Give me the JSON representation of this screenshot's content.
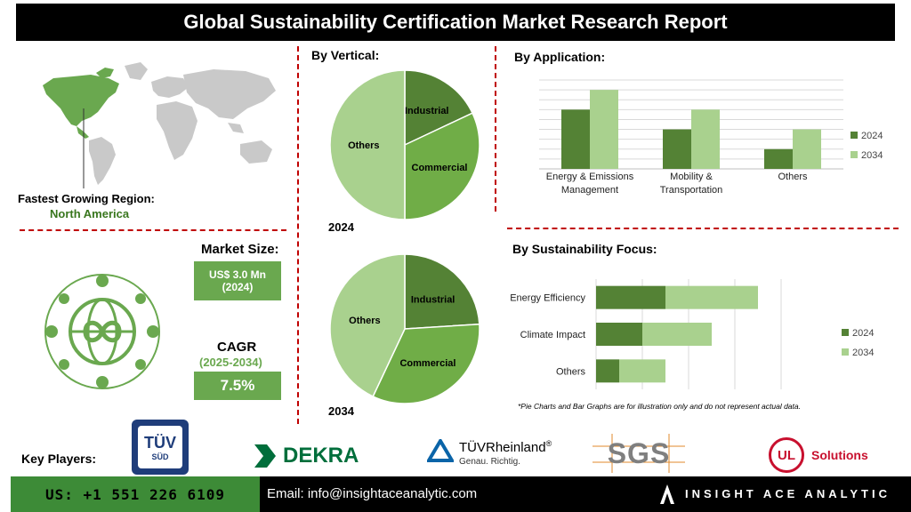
{
  "header": {
    "title": "Global Sustainability Certification Market Research Report"
  },
  "region": {
    "label": "Fastest Growing Region:",
    "value": "North America"
  },
  "market_size": {
    "label": "Market Size:",
    "value_line1": "US$ 3.0 Mn",
    "value_line2": "(2024)"
  },
  "cagr": {
    "label": "CAGR",
    "period": "(2025-2034)",
    "value": "7.5%"
  },
  "vertical": {
    "title": "By Vertical:",
    "year1": "2024",
    "year2": "2034"
  },
  "application": {
    "title": "By Application:"
  },
  "focus": {
    "title": "By Sustainability Focus:"
  },
  "note": "*Pie Charts and Bar Graphs are for illustration only and do not represent actual data.",
  "key_players": {
    "label": "Key Players:",
    "tuv_sud_top": "TÜV",
    "tuv_sud_bottom": "SÜD",
    "dekra": "DEKRA",
    "tuv_rheinland": "TÜVRheinland",
    "tuv_rheinland_reg": "®",
    "tuv_rheinland_tag": "Genau. Richtig.",
    "sgs": "SGS",
    "ul": "UL",
    "ul_solutions": "Solutions"
  },
  "footer": {
    "phone": "US: +1 551 226 6109",
    "email": "Email: info@insightaceanalytic.com",
    "brand": "INSIGHT ACE ANALYTIC"
  },
  "colors": {
    "dark_green": "#548235",
    "mid_green": "#70ad47",
    "light_green": "#a9d18e",
    "accent_red": "#c00000"
  },
  "chart_data": [
    {
      "type": "pie",
      "title": "By Vertical:",
      "year": "2024",
      "labels": [
        "Industrial",
        "Commercial",
        "Others"
      ],
      "values": [
        18,
        32,
        50
      ],
      "colors": [
        "#548235",
        "#70ad47",
        "#a9d18e"
      ]
    },
    {
      "type": "pie",
      "title": "By Vertical:",
      "year": "2034",
      "labels": [
        "Industrial",
        "Commercial",
        "Others"
      ],
      "values": [
        24,
        33,
        43
      ],
      "colors": [
        "#548235",
        "#70ad47",
        "#a9d18e"
      ]
    },
    {
      "type": "bar",
      "title": "By Application:",
      "categories": [
        "Energy & Emissions Management",
        "Mobility & Transportation",
        "Others"
      ],
      "category_lines": [
        [
          "Energy & Emissions",
          "Management"
        ],
        [
          "Mobility &",
          "Transportation"
        ],
        [
          "Others"
        ]
      ],
      "series": [
        {
          "name": "2024",
          "values": [
            3,
            2,
            1
          ],
          "color": "#548235"
        },
        {
          "name": "2034",
          "values": [
            4,
            3,
            2
          ],
          "color": "#a9d18e"
        }
      ],
      "ylim": [
        0,
        4.5
      ],
      "grid": true,
      "legend": "right"
    },
    {
      "type": "bar",
      "orientation": "horizontal",
      "stacked": true,
      "title": "By Sustainability Focus:",
      "categories": [
        "Energy Efficiency",
        "Climate Impact",
        "Others"
      ],
      "series": [
        {
          "name": "2024",
          "values": [
            3,
            2,
            1
          ],
          "color": "#548235"
        },
        {
          "name": "2034",
          "values": [
            4,
            3,
            2
          ],
          "color": "#a9d18e"
        }
      ],
      "xlim": [
        0,
        8
      ],
      "grid": true,
      "legend": "right"
    }
  ]
}
